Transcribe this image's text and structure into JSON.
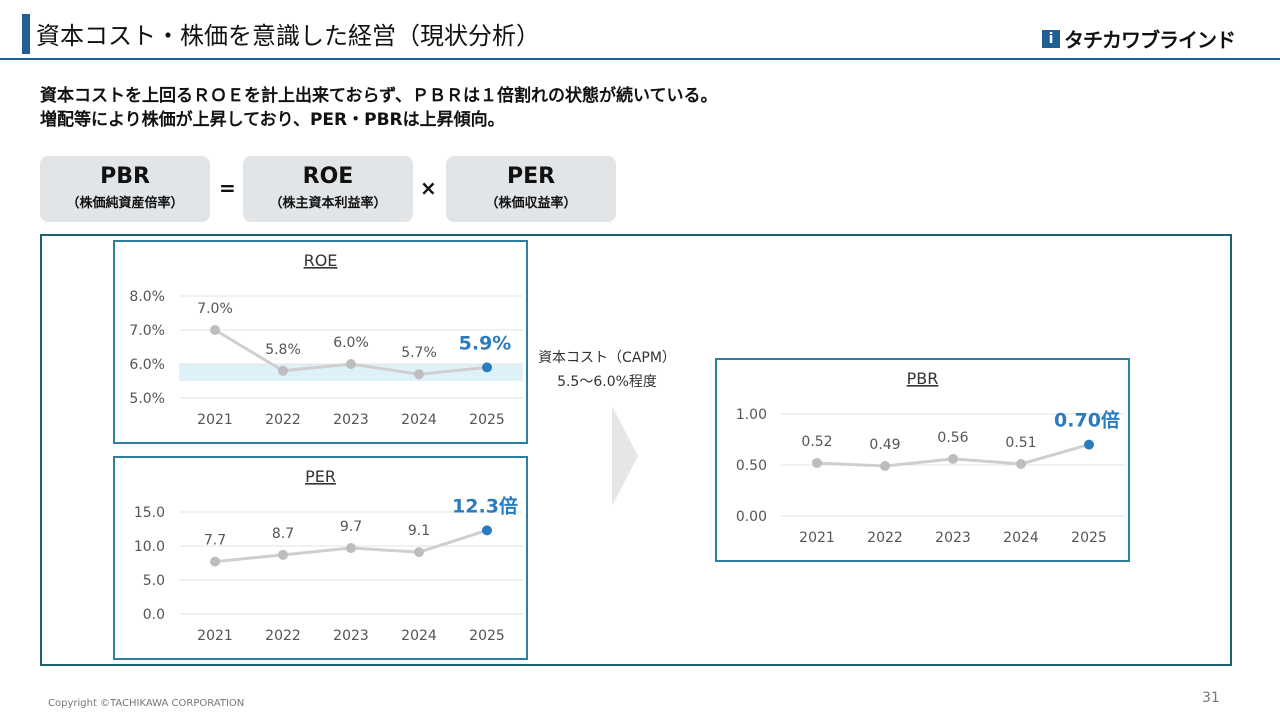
{
  "header": {
    "title": "資本コスト・株価を意識した経営（現状分析）",
    "logo_text": "タチカワブラインド",
    "accent": "#1f5f94"
  },
  "lead": {
    "line1": "資本コストを上回るＲＯＥを計上出来ておらず、ＰＢＲは１倍割れの状態が続いている。",
    "line2": "増配等により株価が上昇しており、PER・PBRは上昇傾向。"
  },
  "formula": {
    "pbr_main": "PBR",
    "pbr_sub": "（株価純資産倍率）",
    "eq": "=",
    "roe_main": "ROE",
    "roe_sub": "（株主資本利益率）",
    "times": "×",
    "per_main": "PER",
    "per_sub": "（株価収益率）"
  },
  "capm": {
    "line1": "資本コスト（CAPM）",
    "line2": "5.5～6.0%程度"
  },
  "footer": {
    "copyright": "Copyright ©TACHIKAWA CORPORATION",
    "page": "31"
  },
  "chart_data": [
    {
      "type": "line",
      "title": "ROE",
      "categories": [
        "2021",
        "2022",
        "2023",
        "2024",
        "2025"
      ],
      "values": [
        7.0,
        5.8,
        6.0,
        5.7,
        5.9
      ],
      "labels": [
        "7.0%",
        "5.8%",
        "6.0%",
        "5.7%",
        "5.9%"
      ],
      "yticks": [
        "5.0%",
        "6.0%",
        "7.0%",
        "8.0%"
      ],
      "ylim": [
        5.0,
        8.0
      ],
      "band": [
        5.5,
        6.0
      ],
      "band_color": "#dff1f8",
      "highlight_color": "#2b7bbf",
      "line_color": "#cfcfcf",
      "grid": true
    },
    {
      "type": "line",
      "title": "PER",
      "categories": [
        "2021",
        "2022",
        "2023",
        "2024",
        "2025"
      ],
      "values": [
        7.7,
        8.7,
        9.7,
        9.1,
        12.3
      ],
      "labels": [
        "7.7",
        "8.7",
        "9.7",
        "9.1",
        "12.3倍"
      ],
      "yticks": [
        "0.0",
        "5.0",
        "10.0",
        "15.0"
      ],
      "ylim": [
        0,
        15
      ],
      "highlight_color": "#2b7bbf",
      "line_color": "#cfcfcf",
      "grid": true
    },
    {
      "type": "line",
      "title": "PBR",
      "categories": [
        "2021",
        "2022",
        "2023",
        "2024",
        "2025"
      ],
      "values": [
        0.52,
        0.49,
        0.56,
        0.51,
        0.7
      ],
      "labels": [
        "0.52",
        "0.49",
        "0.56",
        "0.51",
        "0.70倍"
      ],
      "yticks": [
        "0.00",
        "0.50",
        "1.00"
      ],
      "ylim": [
        0,
        1.0
      ],
      "highlight_color": "#2b7bbf",
      "line_color": "#cfcfcf",
      "grid": true
    }
  ]
}
